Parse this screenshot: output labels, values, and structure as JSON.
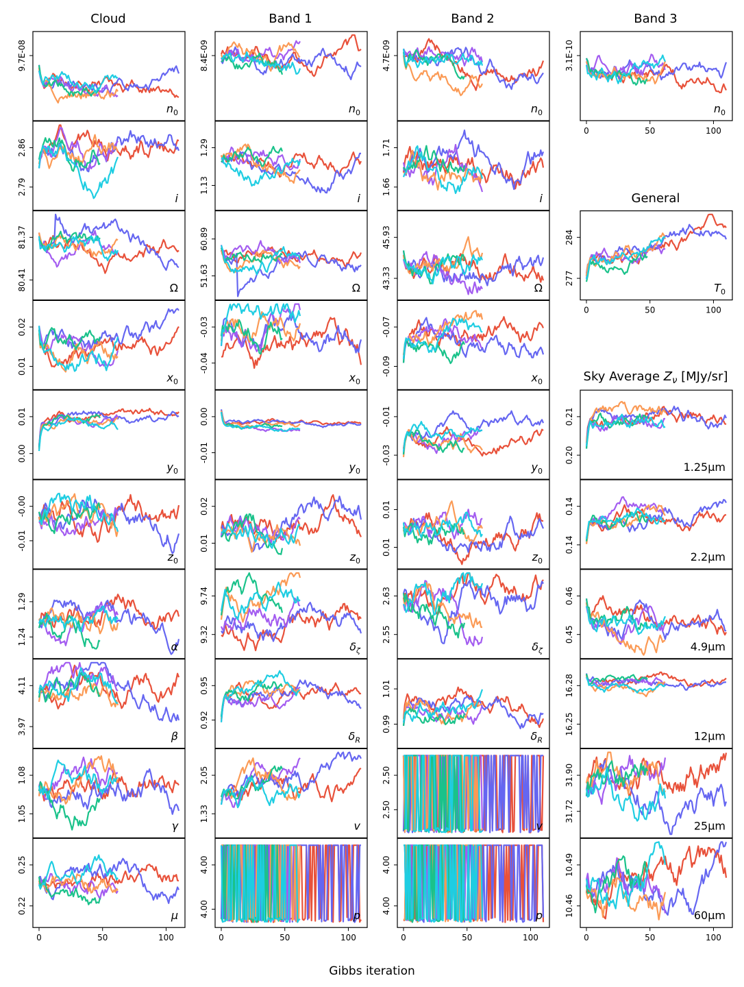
{
  "figure": {
    "xlabel": "Gibbs iteration",
    "column_titles": [
      "Cloud",
      "Band 1",
      "Band 2",
      "Band 3"
    ],
    "section_titles": {
      "general": "General",
      "sky": "Sky Average Z_ν [MJy/sr]"
    },
    "colors": [
      "#e8513a",
      "#6566f1",
      "#a35cf0",
      "#fb9a55",
      "#1ac28a",
      "#1ecde2"
    ],
    "chain_lengths": [
      110,
      110,
      62,
      62,
      48,
      62
    ]
  },
  "chart_data": {
    "type": "line",
    "description_x": "Gibbs iteration",
    "xlim": [
      0,
      110
    ],
    "xticks": [
      0,
      50,
      100
    ],
    "panels": [
      {
        "id": "cloud-n0",
        "col": 0,
        "row": 0,
        "label": "n_0",
        "label_style": "math",
        "yticks": [
          "9.7E-08"
        ],
        "ytick_pos": [
          0.75
        ],
        "start_level": 0.8,
        "volatility": 0.05,
        "spike": 0.0,
        "seed": 11,
        "show_xticks": false
      },
      {
        "id": "cloud-i",
        "col": 0,
        "row": 1,
        "label": "i",
        "label_style": "math",
        "yticks": [
          "2.86",
          "2.79"
        ],
        "ytick_pos": [
          0.72,
          0.24
        ],
        "start_level": 0.35,
        "volatility": 0.08,
        "spike": 0.0,
        "seed": 12,
        "show_xticks": false
      },
      {
        "id": "cloud-omega",
        "col": 0,
        "row": 2,
        "label": "Ω",
        "label_style": "upright",
        "yticks": [
          "81.37",
          "80.41"
        ],
        "ytick_pos": [
          0.72,
          0.2
        ],
        "start_level": 0.9,
        "volatility": 0.06,
        "spike": 0.9,
        "seed": 13,
        "show_xticks": false
      },
      {
        "id": "cloud-x0",
        "col": 0,
        "row": 3,
        "label": "x_0",
        "label_style": "math",
        "yticks": [
          "0.02",
          "0.01"
        ],
        "ytick_pos": [
          0.72,
          0.24
        ],
        "start_level": 0.95,
        "volatility": 0.07,
        "spike": 0.0,
        "seed": 14,
        "show_xticks": false
      },
      {
        "id": "cloud-y0",
        "col": 0,
        "row": 4,
        "label": "y_0",
        "label_style": "math",
        "yticks": [
          "0.01",
          "0.00"
        ],
        "ytick_pos": [
          0.72,
          0.27
        ],
        "start_level": 0.02,
        "volatility": 0.03,
        "spike": 0.0,
        "seed": 15,
        "show_xticks": false
      },
      {
        "id": "cloud-z0",
        "col": 0,
        "row": 5,
        "label": "z_0",
        "label_style": "math",
        "yticks": [
          "-0.00",
          "-0.01"
        ],
        "ytick_pos": [
          0.72,
          0.3
        ],
        "start_level": 0.6,
        "volatility": 0.09,
        "spike": 0.0,
        "seed": 16,
        "show_xticks": false
      },
      {
        "id": "cloud-alpha",
        "col": 0,
        "row": 6,
        "label": "α",
        "label_style": "math",
        "yticks": [
          "1.29",
          "1.24"
        ],
        "ytick_pos": [
          0.65,
          0.22
        ],
        "start_level": 0.35,
        "volatility": 0.08,
        "spike": 0.0,
        "seed": 17,
        "show_xticks": false
      },
      {
        "id": "cloud-beta",
        "col": 0,
        "row": 7,
        "label": "β",
        "label_style": "math",
        "yticks": [
          "4.11",
          "3.97"
        ],
        "ytick_pos": [
          0.72,
          0.22
        ],
        "start_level": 0.5,
        "volatility": 0.08,
        "spike": 0.0,
        "seed": 18,
        "show_xticks": false
      },
      {
        "id": "cloud-gamma",
        "col": 0,
        "row": 8,
        "label": "γ",
        "label_style": "math",
        "yticks": [
          "1.08",
          "1.05"
        ],
        "ytick_pos": [
          0.72,
          0.25
        ],
        "start_level": 0.45,
        "volatility": 0.09,
        "spike": 0.0,
        "seed": 19,
        "show_xticks": false
      },
      {
        "id": "cloud-mu",
        "col": 0,
        "row": 9,
        "label": "μ",
        "label_style": "math",
        "yticks": [
          "0.25",
          "0.22"
        ],
        "ytick_pos": [
          0.72,
          0.22
        ],
        "start_level": 0.6,
        "volatility": 0.07,
        "spike": 0.0,
        "seed": 20,
        "show_xticks": true
      },
      {
        "id": "band1-n0",
        "col": 1,
        "row": 0,
        "label": "n_0",
        "label_style": "math",
        "yticks": [
          "8.4E-09"
        ],
        "ytick_pos": [
          0.75
        ],
        "start_level": 0.75,
        "volatility": 0.06,
        "spike": 0.0,
        "seed": 21,
        "show_xticks": false
      },
      {
        "id": "band1-i",
        "col": 1,
        "row": 1,
        "label": "i",
        "label_style": "math",
        "yticks": [
          "1.29",
          "1.13"
        ],
        "ytick_pos": [
          0.72,
          0.26
        ],
        "start_level": 0.55,
        "volatility": 0.06,
        "spike": 0.0,
        "seed": 22,
        "show_xticks": false
      },
      {
        "id": "band1-omega",
        "col": 1,
        "row": 2,
        "label": "Ω",
        "label_style": "upright",
        "yticks": [
          "60.89",
          "51.63"
        ],
        "ytick_pos": [
          0.7,
          0.25
        ],
        "start_level": 0.7,
        "volatility": 0.05,
        "spike": -0.7,
        "seed": 23,
        "show_xticks": false
      },
      {
        "id": "band1-x0",
        "col": 1,
        "row": 3,
        "label": "x_0",
        "label_style": "math",
        "yticks": [
          "-0.03",
          "-0.04"
        ],
        "ytick_pos": [
          0.72,
          0.28
        ],
        "start_level": 0.4,
        "volatility": 0.09,
        "spike": 0.0,
        "seed": 24,
        "show_xticks": false
      },
      {
        "id": "band1-y0",
        "col": 1,
        "row": 4,
        "label": "y_0",
        "label_style": "math",
        "yticks": [
          "0.00",
          "-0.01"
        ],
        "ytick_pos": [
          0.72,
          0.28
        ],
        "start_level": 0.95,
        "volatility": 0.015,
        "spike": 0.0,
        "seed": 25,
        "show_xticks": false
      },
      {
        "id": "band1-z0",
        "col": 1,
        "row": 5,
        "label": "z_0",
        "label_style": "math",
        "yticks": [
          "0.02",
          "0.01"
        ],
        "ytick_pos": [
          0.72,
          0.27
        ],
        "start_level": 0.3,
        "volatility": 0.08,
        "spike": 0.0,
        "seed": 26,
        "show_xticks": false
      },
      {
        "id": "band1-dzeta",
        "col": 1,
        "row": 6,
        "label": "δ_ζ",
        "label_style": "math",
        "yticks": [
          "9.74",
          "9.32"
        ],
        "ytick_pos": [
          0.72,
          0.25
        ],
        "start_level": 0.25,
        "volatility": 0.08,
        "spike": 0.0,
        "seed": 27,
        "show_xticks": false
      },
      {
        "id": "band1-dR",
        "col": 1,
        "row": 7,
        "label": "δ_R",
        "label_style": "math",
        "yticks": [
          "0.95",
          "0.92"
        ],
        "ytick_pos": [
          0.72,
          0.3
        ],
        "start_level": 0.05,
        "volatility": 0.05,
        "spike": 0.0,
        "seed": 28,
        "show_xticks": false
      },
      {
        "id": "band1-v",
        "col": 1,
        "row": 8,
        "label": "v",
        "label_style": "math",
        "yticks": [
          "2.05",
          "1.33"
        ],
        "ytick_pos": [
          0.72,
          0.25
        ],
        "start_level": 0.3,
        "volatility": 0.07,
        "spike": 0.0,
        "seed": 29,
        "show_xticks": false
      },
      {
        "id": "band1-p",
        "col": 1,
        "row": 9,
        "label": "p",
        "label_style": "math",
        "yticks": [
          "4.00",
          "4.00"
        ],
        "ytick_pos": [
          0.72,
          0.18
        ],
        "start_level": 0.95,
        "volatility": 0.0,
        "spike": 0.0,
        "seed": 30,
        "show_xticks": true,
        "discrete": true
      },
      {
        "id": "band2-n0",
        "col": 2,
        "row": 0,
        "label": "n_0",
        "label_style": "math",
        "yticks": [
          "4.7E-09"
        ],
        "ytick_pos": [
          0.75
        ],
        "start_level": 0.95,
        "volatility": 0.06,
        "spike": 0.0,
        "seed": 31,
        "show_xticks": false
      },
      {
        "id": "band2-i",
        "col": 2,
        "row": 1,
        "label": "i",
        "label_style": "math",
        "yticks": [
          "1.71",
          "1.66"
        ],
        "ytick_pos": [
          0.72,
          0.24
        ],
        "start_level": 0.4,
        "volatility": 0.09,
        "spike": 0.0,
        "seed": 32,
        "show_xticks": false
      },
      {
        "id": "band2-omega",
        "col": 2,
        "row": 2,
        "label": "Ω",
        "label_style": "upright",
        "yticks": [
          "45.93",
          "43.33"
        ],
        "ytick_pos": [
          0.72,
          0.22
        ],
        "start_level": 0.6,
        "volatility": 0.08,
        "spike": 0.0,
        "seed": 33,
        "show_xticks": false
      },
      {
        "id": "band2-x0",
        "col": 2,
        "row": 3,
        "label": "x_0",
        "label_style": "math",
        "yticks": [
          "-0.07",
          "-0.09"
        ],
        "ytick_pos": [
          0.72,
          0.24
        ],
        "start_level": 0.05,
        "volatility": 0.07,
        "spike": 0.0,
        "seed": 34,
        "show_xticks": false
      },
      {
        "id": "band2-y0",
        "col": 2,
        "row": 4,
        "label": "y_0",
        "label_style": "math",
        "yticks": [
          "-0.01",
          "-0.03"
        ],
        "ytick_pos": [
          0.72,
          0.25
        ],
        "start_level": 0.05,
        "volatility": 0.05,
        "spike": 0.0,
        "seed": 35,
        "show_xticks": false
      },
      {
        "id": "band2-z0",
        "col": 2,
        "row": 5,
        "label": "z_0",
        "label_style": "math",
        "yticks": [
          "0.01",
          "0.01"
        ],
        "ytick_pos": [
          0.68,
          0.22
        ],
        "start_level": 0.5,
        "volatility": 0.08,
        "spike": 0.0,
        "seed": 36,
        "show_xticks": false
      },
      {
        "id": "band2-dzeta",
        "col": 2,
        "row": 6,
        "label": "δ_ζ",
        "label_style": "math",
        "yticks": [
          "2.63",
          "2.55"
        ],
        "ytick_pos": [
          0.72,
          0.25
        ],
        "start_level": 0.7,
        "volatility": 0.1,
        "spike": 0.0,
        "seed": 37,
        "show_xticks": false
      },
      {
        "id": "band2-dR",
        "col": 2,
        "row": 7,
        "label": "δ_R",
        "label_style": "math",
        "yticks": [
          "1.01",
          "0.99"
        ],
        "ytick_pos": [
          0.68,
          0.25
        ],
        "start_level": 0.05,
        "volatility": 0.06,
        "spike": 0.0,
        "seed": 38,
        "show_xticks": false
      },
      {
        "id": "band2-v",
        "col": 2,
        "row": 8,
        "label": "v",
        "label_style": "math",
        "yticks": [
          "2.50",
          "2.50"
        ],
        "ytick_pos": [
          0.72,
          0.3
        ],
        "start_level": 0.95,
        "volatility": 0.0,
        "spike": 0.0,
        "seed": 39,
        "show_xticks": false,
        "discrete": true
      },
      {
        "id": "band2-p",
        "col": 2,
        "row": 9,
        "label": "p",
        "label_style": "math",
        "yticks": [
          "4.00",
          "4.00"
        ],
        "ytick_pos": [
          0.72,
          0.22
        ],
        "start_level": 0.95,
        "volatility": 0.0,
        "spike": 0.0,
        "seed": 40,
        "show_xticks": true,
        "discrete": true
      },
      {
        "id": "band3-n0",
        "col": 3,
        "row": 0,
        "label": "n_0",
        "label_style": "math",
        "yticks": [
          "3.1E-10"
        ],
        "ytick_pos": [
          0.75
        ],
        "start_level": 0.8,
        "volatility": 0.06,
        "spike": 0.0,
        "seed": 41,
        "show_xticks": true
      },
      {
        "id": "general-T0",
        "col": 3,
        "row": 2,
        "label": "T_0",
        "label_style": "math",
        "yticks": [
          "284",
          "277"
        ],
        "ytick_pos": [
          0.72,
          0.22
        ],
        "start_level": 0.05,
        "volatility": 0.05,
        "spike": 0.0,
        "seed": 42,
        "show_xticks": true,
        "trend": 0.6
      },
      {
        "id": "sky-1.25",
        "col": 3,
        "row": 4,
        "label": "1.25μm",
        "label_style": "upright",
        "yticks": [
          "0.21",
          "0.20"
        ],
        "ytick_pos": [
          0.72,
          0.25
        ],
        "start_level": 0.05,
        "volatility": 0.05,
        "spike": 0.0,
        "seed": 43,
        "show_xticks": false
      },
      {
        "id": "sky-2.2",
        "col": 3,
        "row": 5,
        "label": "2.2μm",
        "label_style": "upright",
        "yticks": [
          "0.14",
          "0.14"
        ],
        "ytick_pos": [
          0.72,
          0.25
        ],
        "start_level": 0.05,
        "volatility": 0.05,
        "spike": 0.0,
        "seed": 44,
        "show_xticks": false
      },
      {
        "id": "sky-4.9",
        "col": 3,
        "row": 6,
        "label": "4.9μm",
        "label_style": "upright",
        "yticks": [
          "0.46",
          "0.45"
        ],
        "ytick_pos": [
          0.72,
          0.25
        ],
        "start_level": 0.85,
        "volatility": 0.07,
        "spike": 0.0,
        "seed": 45,
        "show_xticks": false
      },
      {
        "id": "sky-12",
        "col": 3,
        "row": 7,
        "label": "12μm",
        "label_style": "upright",
        "yticks": [
          "16.28",
          "16.25"
        ],
        "ytick_pos": [
          0.72,
          0.25
        ],
        "start_level": 0.95,
        "volatility": 0.03,
        "spike": 0.0,
        "seed": 46,
        "show_xticks": false
      },
      {
        "id": "sky-25",
        "col": 3,
        "row": 8,
        "label": "25μm",
        "label_style": "upright",
        "yticks": [
          "31.90",
          "31.72"
        ],
        "ytick_pos": [
          0.72,
          0.28
        ],
        "start_level": 0.5,
        "volatility": 0.12,
        "spike": 0.0,
        "seed": 47,
        "show_xticks": false
      },
      {
        "id": "sky-60",
        "col": 3,
        "row": 9,
        "label": "60μm",
        "label_style": "upright",
        "yticks": [
          "10.49",
          "10.46"
        ],
        "ytick_pos": [
          0.72,
          0.22
        ],
        "start_level": 0.5,
        "volatility": 0.12,
        "spike": 0.0,
        "seed": 48,
        "show_xticks": true
      }
    ]
  }
}
